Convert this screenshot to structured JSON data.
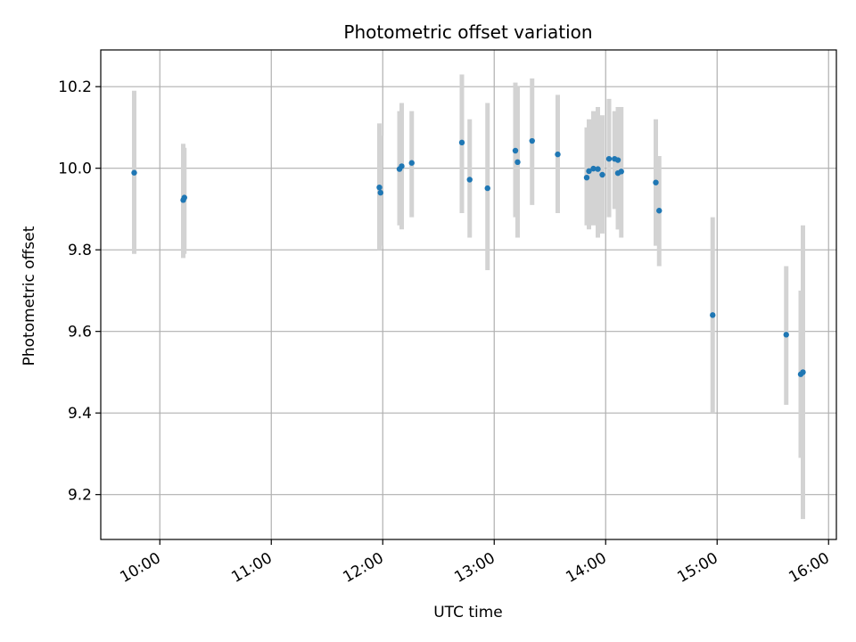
{
  "chart_data": {
    "type": "scatter",
    "title": "Photometric offset variation",
    "xlabel": "UTC time",
    "ylabel": "Photometric offset",
    "xlim_hours": [
      9.47,
      16.07
    ],
    "ylim": [
      9.09,
      10.29
    ],
    "grid": true,
    "x_ticks": [
      {
        "value": 10,
        "label": "10:00"
      },
      {
        "value": 11,
        "label": "11:00"
      },
      {
        "value": 12,
        "label": "12:00"
      },
      {
        "value": 13,
        "label": "13:00"
      },
      {
        "value": 14,
        "label": "14:00"
      },
      {
        "value": 15,
        "label": "15:00"
      },
      {
        "value": 16,
        "label": "16:00"
      }
    ],
    "y_ticks": [
      {
        "value": 9.2,
        "label": "9.2"
      },
      {
        "value": 9.4,
        "label": "9.4"
      },
      {
        "value": 9.6,
        "label": "9.6"
      },
      {
        "value": 9.8,
        "label": "9.8"
      },
      {
        "value": 10.0,
        "label": "10.0"
      },
      {
        "value": 10.2,
        "label": "10.2"
      }
    ],
    "point_color": "#1f77b4",
    "errorbar_color": "#d3d3d3",
    "points": [
      {
        "x": 9.77,
        "y": 9.989,
        "lo": 9.79,
        "hi": 10.19
      },
      {
        "x": 10.21,
        "y": 9.922,
        "lo": 9.78,
        "hi": 10.06
      },
      {
        "x": 10.22,
        "y": 9.928,
        "lo": 9.79,
        "hi": 10.05
      },
      {
        "x": 11.97,
        "y": 9.953,
        "lo": 9.8,
        "hi": 10.11
      },
      {
        "x": 11.98,
        "y": 9.94,
        "lo": 9.81,
        "hi": 10.08
      },
      {
        "x": 12.15,
        "y": 9.998,
        "lo": 9.86,
        "hi": 10.14
      },
      {
        "x": 12.17,
        "y": 10.005,
        "lo": 9.85,
        "hi": 10.16
      },
      {
        "x": 12.26,
        "y": 10.013,
        "lo": 9.88,
        "hi": 10.14
      },
      {
        "x": 12.71,
        "y": 10.063,
        "lo": 9.89,
        "hi": 10.23
      },
      {
        "x": 12.78,
        "y": 9.972,
        "lo": 9.83,
        "hi": 10.12
      },
      {
        "x": 12.94,
        "y": 9.951,
        "lo": 9.75,
        "hi": 10.16
      },
      {
        "x": 13.19,
        "y": 10.043,
        "lo": 9.88,
        "hi": 10.21
      },
      {
        "x": 13.21,
        "y": 10.015,
        "lo": 9.83,
        "hi": 10.2
      },
      {
        "x": 13.34,
        "y": 10.067,
        "lo": 9.91,
        "hi": 10.22
      },
      {
        "x": 13.57,
        "y": 10.034,
        "lo": 9.89,
        "hi": 10.18
      },
      {
        "x": 13.83,
        "y": 9.977,
        "lo": 9.86,
        "hi": 10.1
      },
      {
        "x": 13.85,
        "y": 9.993,
        "lo": 9.85,
        "hi": 10.12
      },
      {
        "x": 13.89,
        "y": 9.999,
        "lo": 9.86,
        "hi": 10.14
      },
      {
        "x": 13.93,
        "y": 9.998,
        "lo": 9.83,
        "hi": 10.15
      },
      {
        "x": 13.97,
        "y": 9.984,
        "lo": 9.84,
        "hi": 10.13
      },
      {
        "x": 14.03,
        "y": 10.023,
        "lo": 9.88,
        "hi": 10.17
      },
      {
        "x": 14.08,
        "y": 10.023,
        "lo": 9.9,
        "hi": 10.14
      },
      {
        "x": 14.11,
        "y": 10.02,
        "lo": 9.85,
        "hi": 10.15
      },
      {
        "x": 14.11,
        "y": 9.988,
        "lo": 9.85,
        "hi": 10.15
      },
      {
        "x": 14.14,
        "y": 9.992,
        "lo": 9.83,
        "hi": 10.15
      },
      {
        "x": 14.45,
        "y": 9.965,
        "lo": 9.81,
        "hi": 10.12
      },
      {
        "x": 14.48,
        "y": 9.896,
        "lo": 9.76,
        "hi": 10.03
      },
      {
        "x": 14.96,
        "y": 9.64,
        "lo": 9.4,
        "hi": 9.88
      },
      {
        "x": 15.62,
        "y": 9.592,
        "lo": 9.42,
        "hi": 9.76
      },
      {
        "x": 15.75,
        "y": 9.495,
        "lo": 9.29,
        "hi": 9.7
      },
      {
        "x": 15.77,
        "y": 9.5,
        "lo": 9.14,
        "hi": 9.86
      }
    ]
  }
}
